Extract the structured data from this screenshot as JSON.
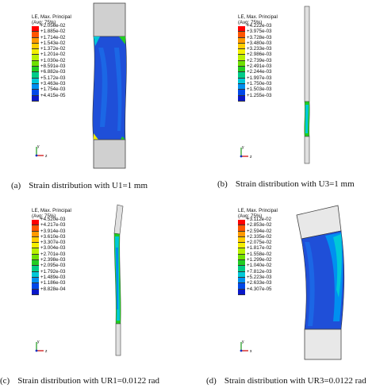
{
  "panels": [
    {
      "id": "a",
      "legend_title_1": "LE, Max. Principal",
      "legend_title_2": "(Avg: 75%)",
      "legend_values": [
        "+2.056e-02",
        "+1.885e-02",
        "+1.714e-02",
        "+1.543e-02",
        "+1.372e-02",
        "+1.201e-02",
        "+1.030e-02",
        "+8.591e-03",
        "+6.882e-03",
        "+5.172e-03",
        "+3.463e-03",
        "+1.754e-03",
        "+4.415e-05"
      ],
      "caption_tag": "(a)",
      "caption_text": "Strain distribution with U1=1 mm"
    },
    {
      "id": "b",
      "legend_title_1": "LE, Max. Principal",
      "legend_title_2": "(Avg: 75%)",
      "legend_values": [
        "+4.222e-03",
        "+3.975e-03",
        "+3.728e-03",
        "+3.480e-03",
        "+3.233e-03",
        "+2.986e-03",
        "+2.739e-03",
        "+2.491e-03",
        "+2.244e-03",
        "+1.997e-03",
        "+1.750e-03",
        "+1.503e-03",
        "+1.255e-03"
      ],
      "caption_tag": "(b)",
      "caption_text": "Strain distribution with U3=1 mm"
    },
    {
      "id": "c",
      "legend_title_1": "LE, Max. Principal",
      "legend_title_2": "(Avg: 75%)",
      "legend_values": [
        "+4.520e-03",
        "+4.217e-03",
        "+3.914e-03",
        "+3.610e-03",
        "+3.307e-03",
        "+3.004e-03",
        "+2.701e-03",
        "+2.398e-03",
        "+2.095e-03",
        "+1.792e-03",
        "+1.489e-03",
        "+1.186e-03",
        "+8.828e-04"
      ],
      "caption_tag": "(c)",
      "caption_text": "Strain distribution with UR1=0.0122 rad"
    },
    {
      "id": "d",
      "legend_title_1": "LE, Max. Principal",
      "legend_title_2": "(Avg: 75%)",
      "legend_values": [
        "+3.112e-02",
        "+2.853e-02",
        "+2.594e-02",
        "+2.335e-02",
        "+2.075e-02",
        "+1.817e-02",
        "+1.558e-02",
        "+1.299e-02",
        "+1.040e-02",
        "+7.812e-03",
        "+5.223e-03",
        "+2.633e-03",
        "+4.307e-05"
      ],
      "caption_tag": "(d)",
      "caption_text": "Strain distribution with UR3=0.0122 rad"
    }
  ],
  "axes_labels": {
    "y": "y",
    "z": "z",
    "x": "x"
  },
  "colormap": [
    "#ff0000",
    "#ff5500",
    "#ff9900",
    "#ffcc00",
    "#f2ee00",
    "#b8f000",
    "#6fe000",
    "#22cc22",
    "#00cc88",
    "#00c8d8",
    "#0090f0",
    "#0048e8",
    "#0a18c8"
  ]
}
